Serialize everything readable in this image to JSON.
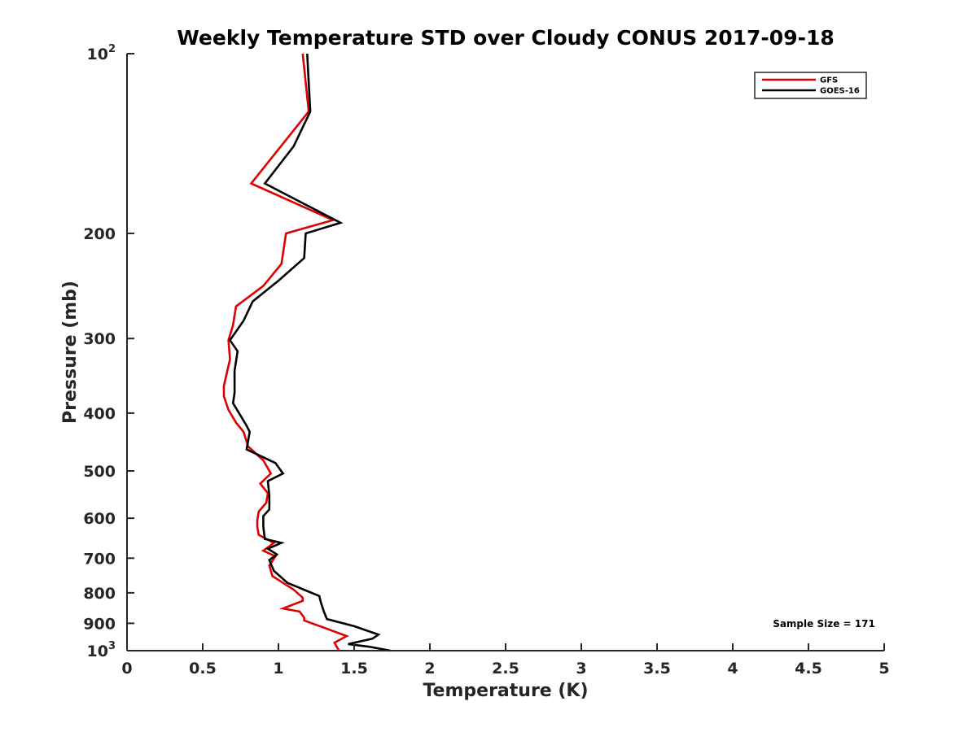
{
  "chart_data": {
    "type": "line",
    "title": "Weekly Temperature STD over Cloudy CONUS 2017-09-18",
    "xlabel": "Temperature (K)",
    "ylabel": "Pressure (mb)",
    "xlim": [
      0,
      5
    ],
    "ylim": [
      100,
      1000
    ],
    "y_scale": "log",
    "y_reversed": true,
    "grid": false,
    "legend_position": "top-right",
    "x_ticks": [
      {
        "value": 0,
        "label": "0"
      },
      {
        "value": 0.5,
        "label": "0.5"
      },
      {
        "value": 1,
        "label": "1"
      },
      {
        "value": 1.5,
        "label": "1.5"
      },
      {
        "value": 2,
        "label": "2"
      },
      {
        "value": 2.5,
        "label": "2.5"
      },
      {
        "value": 3,
        "label": "3"
      },
      {
        "value": 3.5,
        "label": "3.5"
      },
      {
        "value": 4,
        "label": "4"
      },
      {
        "value": 4.5,
        "label": "4.5"
      },
      {
        "value": 5,
        "label": "5"
      }
    ],
    "y_ticks": [
      {
        "value": 100,
        "label": "10",
        "sup": "2"
      },
      {
        "value": 200,
        "label": "200"
      },
      {
        "value": 300,
        "label": "300"
      },
      {
        "value": 400,
        "label": "400"
      },
      {
        "value": 500,
        "label": "500"
      },
      {
        "value": 600,
        "label": "600"
      },
      {
        "value": 700,
        "label": "700"
      },
      {
        "value": 800,
        "label": "800"
      },
      {
        "value": 900,
        "label": "900"
      },
      {
        "value": 1000,
        "label": "10",
        "sup": "3"
      }
    ],
    "series": [
      {
        "name": "GFS",
        "color": "#dd0000",
        "points": [
          [
            1.16,
            100
          ],
          [
            1.2,
            125
          ],
          [
            0.82,
            165
          ],
          [
            1.36,
            190
          ],
          [
            1.05,
            200
          ],
          [
            1.02,
            225
          ],
          [
            0.9,
            245
          ],
          [
            0.72,
            265
          ],
          [
            0.7,
            285
          ],
          [
            0.67,
            302
          ],
          [
            0.68,
            325
          ],
          [
            0.64,
            360
          ],
          [
            0.64,
            375
          ],
          [
            0.67,
            395
          ],
          [
            0.72,
            415
          ],
          [
            0.77,
            430
          ],
          [
            0.8,
            455
          ],
          [
            0.9,
            480
          ],
          [
            0.95,
            505
          ],
          [
            0.88,
            525
          ],
          [
            0.93,
            545
          ],
          [
            0.92,
            565
          ],
          [
            0.87,
            585
          ],
          [
            0.86,
            605
          ],
          [
            0.86,
            620
          ],
          [
            0.87,
            640
          ],
          [
            0.97,
            660
          ],
          [
            0.9,
            680
          ],
          [
            0.98,
            695
          ],
          [
            0.94,
            720
          ],
          [
            0.96,
            750
          ],
          [
            1.1,
            790
          ],
          [
            1.16,
            815
          ],
          [
            1.16,
            825
          ],
          [
            1.03,
            850
          ],
          [
            1.14,
            860
          ],
          [
            1.17,
            880
          ],
          [
            1.17,
            890
          ],
          [
            1.3,
            915
          ],
          [
            1.45,
            945
          ],
          [
            1.37,
            970
          ],
          [
            1.4,
            1000
          ]
        ]
      },
      {
        "name": "GOES-16",
        "color": "#000000",
        "points": [
          [
            1.19,
            100
          ],
          [
            1.21,
            125
          ],
          [
            1.1,
            143
          ],
          [
            0.91,
            165
          ],
          [
            1.41,
            192
          ],
          [
            1.18,
            200
          ],
          [
            1.17,
            220
          ],
          [
            1.0,
            240
          ],
          [
            0.83,
            260
          ],
          [
            0.77,
            280
          ],
          [
            0.68,
            302
          ],
          [
            0.73,
            315
          ],
          [
            0.71,
            340
          ],
          [
            0.71,
            370
          ],
          [
            0.7,
            385
          ],
          [
            0.74,
            400
          ],
          [
            0.79,
            420
          ],
          [
            0.81,
            430
          ],
          [
            0.79,
            460
          ],
          [
            0.98,
            485
          ],
          [
            1.03,
            505
          ],
          [
            0.93,
            520
          ],
          [
            0.94,
            550
          ],
          [
            0.94,
            580
          ],
          [
            0.9,
            595
          ],
          [
            0.9,
            620
          ],
          [
            0.91,
            650
          ],
          [
            1.02,
            660
          ],
          [
            0.93,
            675
          ],
          [
            0.99,
            690
          ],
          [
            0.94,
            705
          ],
          [
            0.97,
            735
          ],
          [
            1.06,
            770
          ],
          [
            1.27,
            810
          ],
          [
            1.28,
            830
          ],
          [
            1.3,
            860
          ],
          [
            1.32,
            885
          ],
          [
            1.5,
            910
          ],
          [
            1.66,
            940
          ],
          [
            1.62,
            955
          ],
          [
            1.46,
            975
          ],
          [
            1.6,
            985
          ],
          [
            1.74,
            1000
          ]
        ]
      }
    ],
    "annotations": [
      {
        "text": "Sample Size = 171"
      }
    ]
  }
}
